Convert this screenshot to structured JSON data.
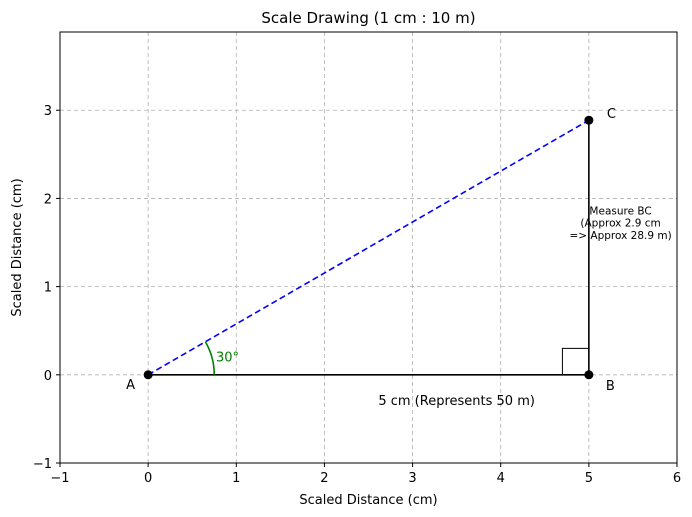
{
  "chart_data": {
    "type": "line",
    "title": "Scale Drawing (1 cm : 10 m)",
    "xlabel": "Scaled Distance (cm)",
    "ylabel": "Scaled Distance (cm)",
    "xlim": [
      -1,
      6
    ],
    "ylim": [
      -1,
      3.887
    ],
    "xticks": [
      -1,
      0,
      1,
      2,
      3,
      4,
      5,
      6
    ],
    "yticks": [
      -1,
      0,
      1,
      2,
      3
    ],
    "grid": true,
    "points": [
      {
        "name": "A",
        "x": 0,
        "y": 0
      },
      {
        "name": "B",
        "x": 5,
        "y": 0
      },
      {
        "name": "C",
        "x": 5,
        "y": 2.887
      }
    ],
    "segments": [
      {
        "from": "A",
        "to": "B",
        "style": "solid",
        "color": "#000000"
      },
      {
        "from": "B",
        "to": "C",
        "style": "solid",
        "color": "#000000"
      },
      {
        "from": "A",
        "to": "C",
        "style": "dashed",
        "color": "#0000ff"
      }
    ],
    "angle": {
      "vertex": "A",
      "degrees": 30,
      "label": "30°",
      "color": "#008000"
    },
    "right_angle_at": "B",
    "annotations": {
      "ab_label": "5 cm (Represents 50 m)",
      "bc_note": [
        "Measure BC",
        "(Approx 2.9 cm",
        "=> Approx 28.9 m)"
      ]
    }
  }
}
